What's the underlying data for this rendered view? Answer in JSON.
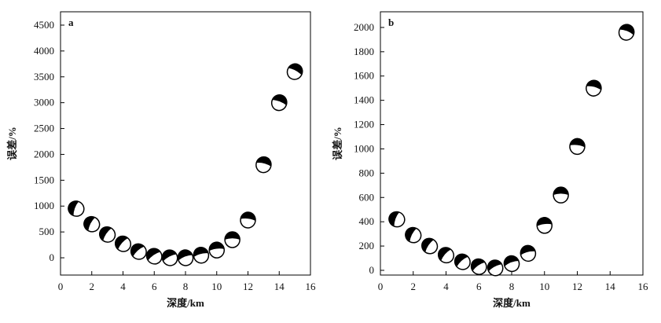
{
  "chart_data": [
    {
      "type": "scatter",
      "panel_label": "a",
      "x_label": "深度/km",
      "y_label": "误差/%",
      "xlim": [
        0,
        16
      ],
      "xticks": [
        0,
        2,
        4,
        6,
        8,
        10,
        12,
        14,
        16
      ],
      "ylim": [
        -334,
        4758
      ],
      "yticks": [
        0,
        500,
        1000,
        1500,
        2000,
        2500,
        3000,
        3500,
        4000,
        4500
      ],
      "series": [
        {
          "name": "a",
          "color": "#000000",
          "x": [
            1,
            2,
            3,
            4,
            5,
            6,
            7,
            8,
            9,
            10,
            11,
            12,
            13,
            14,
            15
          ],
          "values": [
            950,
            650,
            450,
            270,
            120,
            30,
            0,
            0,
            50,
            150,
            350,
            730,
            1800,
            3000,
            3600
          ]
        }
      ]
    },
    {
      "type": "scatter",
      "panel_label": "b",
      "x_label": "深度/km",
      "y_label": "误差/%",
      "xlim": [
        0,
        16
      ],
      "xticks": [
        0,
        2,
        4,
        6,
        8,
        10,
        12,
        14,
        16
      ],
      "ylim": [
        -39,
        2129
      ],
      "yticks": [
        0,
        200,
        400,
        600,
        800,
        1000,
        1200,
        1400,
        1600,
        1800,
        2000
      ],
      "series": [
        {
          "name": "b",
          "color": "#000000",
          "x": [
            1,
            2,
            3,
            4,
            5,
            6,
            7,
            8,
            9,
            10,
            11,
            12,
            13,
            15
          ],
          "values": [
            420,
            290,
            200,
            125,
            70,
            30,
            20,
            55,
            140,
            370,
            620,
            1020,
            1500,
            1960
          ]
        }
      ]
    }
  ]
}
